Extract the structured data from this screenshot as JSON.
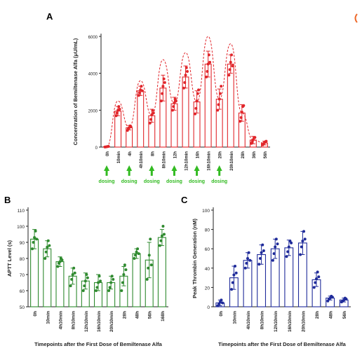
{
  "colors": {
    "red": "#e1262b",
    "green": "#2f8a2f",
    "dose_green": "#33bb22",
    "blue": "#1f2b9a",
    "axis": "#222222",
    "corner_mark": "#ee6a2c"
  },
  "chart_data": [
    {
      "panel": "A",
      "type": "bar",
      "ylabel": "Concentration of Bemiltenase Alfa (μU/mL)",
      "xlabel": "",
      "ylim": [
        0,
        6000
      ],
      "yticks": [
        "0",
        "2000",
        "4000",
        "6000"
      ],
      "grid": false,
      "categories": [
        "0h",
        "10min",
        "4h",
        "4h10min",
        "8h",
        "8h10min",
        "12h",
        "12h10min",
        "16h",
        "16h10min",
        "20h",
        "20h10min",
        "28h",
        "36h",
        "56h"
      ],
      "values": [
        20,
        1950,
        1050,
        3050,
        1700,
        3200,
        2350,
        3800,
        2450,
        4500,
        2600,
        4500,
        1850,
        380,
        220
      ],
      "errors": [
        20,
        250,
        120,
        250,
        350,
        700,
        350,
        600,
        600,
        700,
        550,
        500,
        450,
        200,
        100
      ],
      "points": [
        [
          5,
          10,
          20,
          30,
          40
        ],
        [
          1700,
          1850,
          2000,
          2200,
          2050
        ],
        [
          900,
          1000,
          1050,
          1150,
          1100
        ],
        [
          2800,
          2950,
          3100,
          3300,
          3050
        ],
        [
          1300,
          1500,
          1750,
          2000,
          1850
        ],
        [
          2500,
          2900,
          3300,
          3700,
          3500
        ],
        [
          2000,
          2200,
          2400,
          2600,
          2500
        ],
        [
          3200,
          3500,
          3900,
          4300,
          4100
        ],
        [
          1800,
          2100,
          2500,
          2900,
          3100
        ],
        [
          3800,
          4100,
          4500,
          5000,
          4600
        ],
        [
          2000,
          2300,
          2600,
          2900,
          3300
        ],
        [
          3900,
          4200,
          4600,
          5000,
          4400
        ],
        [
          1400,
          1600,
          1900,
          2200,
          2250
        ],
        [
          200,
          300,
          400,
          500,
          520
        ],
        [
          120,
          180,
          240,
          290,
          320
        ]
      ],
      "dosing_label": "dosing",
      "dosing_at": [
        "0h",
        "4h",
        "8h",
        "12h",
        "16h",
        "20h"
      ]
    },
    {
      "panel": "B",
      "type": "bar",
      "ylabel": "APTT Level (s)",
      "xlabel": "Timepoints after the First Dose of Bemiltenase Alfa",
      "ylim": [
        50,
        110
      ],
      "yticks": [
        "50",
        "60",
        "70",
        "80",
        "90",
        "100",
        "110"
      ],
      "categories": [
        "0h",
        "10min",
        "4h10min",
        "8h10min",
        "12h10min",
        "16h10min",
        "20h10min",
        "28h",
        "48h",
        "56h",
        "168h"
      ],
      "values": [
        92,
        86,
        78,
        69,
        66,
        65,
        65,
        69,
        83,
        79,
        93
      ],
      "errors": [
        6,
        5,
        3,
        5,
        5,
        5,
        4,
        6,
        3,
        11,
        5
      ],
      "points": [
        [
          86,
          90,
          93,
          97,
          92
        ],
        [
          80,
          84,
          87,
          91,
          88
        ],
        [
          75,
          77,
          78,
          80,
          79
        ],
        [
          63,
          67,
          70,
          74,
          71
        ],
        [
          60,
          63,
          66,
          70,
          68
        ],
        [
          60,
          62,
          65,
          69,
          66
        ],
        [
          60,
          62,
          65,
          69,
          67
        ],
        [
          60,
          65,
          70,
          76,
          73
        ],
        [
          80,
          82,
          84,
          86,
          83
        ],
        [
          67,
          74,
          82,
          92,
          76
        ],
        [
          88,
          91,
          94,
          100,
          95
        ]
      ]
    },
    {
      "panel": "C",
      "type": "bar",
      "ylabel": "Peak Thrombin Generation (nM)",
      "xlabel": "Timepoints after the First Dose of Bemiltenase Alfa",
      "ylim": [
        0,
        100
      ],
      "yticks": [
        "0",
        "20",
        "40",
        "60",
        "80",
        "100"
      ],
      "categories": [
        "0h",
        "10min",
        "4h10min",
        "8h10min",
        "12h10min",
        "16h10min",
        "20h10min",
        "28h",
        "48h",
        "56h"
      ],
      "values": [
        4,
        30,
        48,
        54,
        60,
        61,
        66,
        28,
        9,
        7
      ],
      "errors": [
        3,
        12,
        8,
        10,
        10,
        8,
        12,
        7,
        2,
        2
      ],
      "points": [
        [
          1,
          3,
          5,
          7,
          4
        ],
        [
          18,
          25,
          33,
          42,
          35
        ],
        [
          40,
          45,
          50,
          56,
          48
        ],
        [
          44,
          50,
          56,
          64,
          58
        ],
        [
          48,
          55,
          62,
          70,
          65
        ],
        [
          52,
          57,
          62,
          68,
          66
        ],
        [
          54,
          62,
          68,
          78,
          70
        ],
        [
          20,
          25,
          29,
          36,
          31
        ],
        [
          6,
          8,
          9,
          11,
          10
        ],
        [
          5,
          6,
          7,
          9,
          8
        ]
      ]
    }
  ]
}
